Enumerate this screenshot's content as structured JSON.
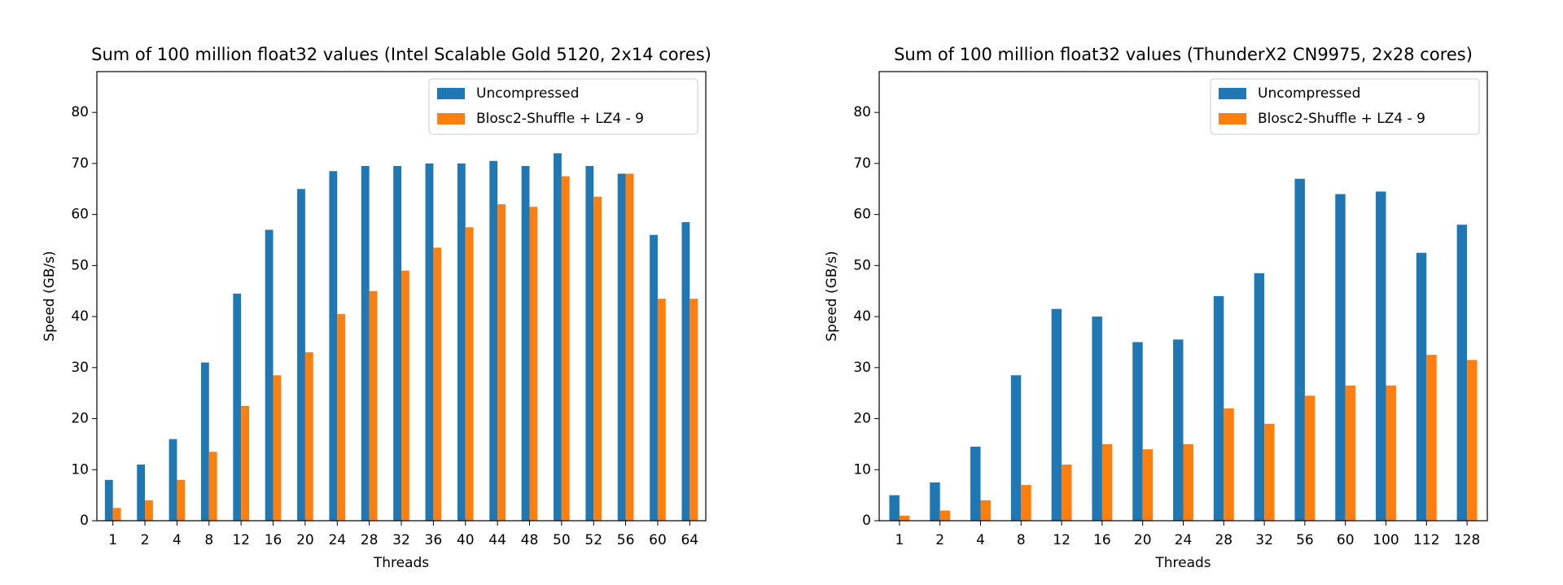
{
  "chart_data": [
    {
      "type": "bar",
      "title": "Sum of 100 million float32 values (Intel Scalable Gold 5120, 2x14 cores)",
      "x_label": "Threads",
      "y_label": "Speed (GB/s)",
      "categories": [
        "1",
        "2",
        "4",
        "8",
        "12",
        "16",
        "20",
        "24",
        "28",
        "32",
        "36",
        "40",
        "44",
        "48",
        "50",
        "52",
        "56",
        "60",
        "64"
      ],
      "series": [
        {
          "name": "Uncompressed",
          "color": "#1f77b4",
          "values": [
            8,
            11,
            16,
            31,
            44.5,
            57,
            65,
            68.5,
            69.5,
            69.5,
            70,
            70,
            70.5,
            69.5,
            72,
            69.5,
            68,
            56,
            58.5
          ]
        },
        {
          "name": "Blosc2-Shuffle + LZ4 - 9",
          "color": "#ff7f0e",
          "values": [
            2.5,
            4,
            8,
            13.5,
            22.5,
            28.5,
            33,
            40.5,
            45,
            49,
            53.5,
            57.5,
            62,
            61.5,
            67.5,
            63.5,
            68,
            43.5,
            43.5
          ]
        }
      ],
      "ylim": [
        0,
        88
      ],
      "yticks": [
        0,
        10,
        20,
        30,
        40,
        50,
        60,
        70,
        80
      ],
      "legend": "upper right"
    },
    {
      "type": "bar",
      "title": "Sum of 100 million float32 values (ThunderX2 CN9975, 2x28 cores)",
      "x_label": "Threads",
      "y_label": "Speed (GB/s)",
      "categories": [
        "1",
        "2",
        "4",
        "8",
        "12",
        "16",
        "20",
        "24",
        "28",
        "32",
        "56",
        "60",
        "100",
        "112",
        "128"
      ],
      "series": [
        {
          "name": "Uncompressed",
          "color": "#1f77b4",
          "values": [
            5,
            7.5,
            14.5,
            28.5,
            41.5,
            40,
            35,
            35.5,
            44,
            48.5,
            67,
            64,
            64.5,
            52.5,
            58
          ]
        },
        {
          "name": "Blosc2-Shuffle + LZ4 - 9",
          "color": "#ff7f0e",
          "values": [
            1,
            2,
            4,
            7,
            11,
            15,
            14,
            15,
            22,
            19,
            24.5,
            26.5,
            26.5,
            32.5,
            31.5
          ]
        }
      ],
      "ylim": [
        0,
        88
      ],
      "yticks": [
        0,
        10,
        20,
        30,
        40,
        50,
        60,
        70,
        80
      ],
      "legend": "upper right"
    }
  ]
}
